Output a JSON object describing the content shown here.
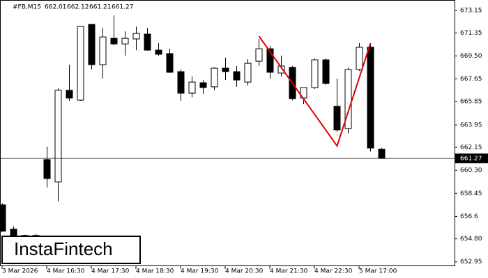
{
  "chart_data": {
    "type": "candlestick",
    "symbol": "#FB,M15",
    "header_ohlc": [
      662.01,
      662.12,
      661.21,
      661.27
    ],
    "watermark": "InstaFintech",
    "categories": [
      "3 Mar 2026",
      null,
      null,
      null,
      "4 Mar 16:30",
      null,
      null,
      null,
      "4 Mar 17:30",
      null,
      null,
      null,
      "4 Mar 18:30",
      null,
      null,
      null,
      "4 Mar 19:30",
      null,
      null,
      null,
      "4 Mar 20:30",
      null,
      null,
      null,
      "4 Mar 21:30",
      null,
      null,
      null,
      "4 Mar 22:30",
      null,
      null,
      null,
      "5 Mar 17:00",
      null,
      null
    ],
    "open": [
      657.53,
      655.58,
      655.02,
      655.07,
      661.16,
      659.37,
      666.74,
      665.95,
      672.04,
      668.8,
      670.92,
      670.47,
      670.87,
      671.26,
      669.97,
      669.69,
      668.24,
      666.51,
      667.35,
      667.02,
      668.52,
      668.24,
      667.4,
      669.08,
      670.08,
      668.13,
      668.58,
      666.12,
      666.96,
      669.19,
      665.45,
      663.67,
      668.41,
      670.2,
      662.01
    ],
    "high": [
      657.64,
      655.8,
      655.13,
      655.19,
      662.22,
      666.9,
      668.8,
      671.87,
      672.04,
      671.76,
      672.76,
      671.48,
      671.87,
      671.76,
      670.53,
      670.08,
      668.41,
      667.85,
      667.57,
      668.58,
      669.36,
      668.69,
      669.25,
      670.87,
      670.31,
      669.53,
      668.69,
      666.9,
      669.3,
      669.3,
      667.68,
      668.58,
      670.53,
      670.53,
      662.12
    ],
    "low": [
      655.41,
      654.74,
      654.91,
      654.91,
      658.92,
      657.81,
      665.9,
      665.9,
      668.41,
      667.68,
      670.36,
      669.53,
      669.97,
      669.92,
      669.53,
      668.13,
      665.9,
      666.18,
      666.46,
      666.74,
      667.57,
      667.02,
      667.13,
      668.69,
      667.68,
      667.85,
      665.95,
      665.62,
      666.85,
      667.18,
      663.39,
      663.28,
      668.3,
      661.82,
      661.21
    ],
    "close": [
      655.41,
      655.02,
      655.07,
      655.02,
      659.65,
      666.74,
      666.12,
      671.87,
      668.8,
      671.03,
      670.47,
      670.92,
      671.31,
      669.97,
      669.64,
      668.19,
      666.51,
      667.4,
      666.96,
      668.52,
      668.24,
      667.57,
      668.91,
      670.08,
      668.19,
      668.69,
      666.07,
      666.96,
      669.19,
      667.29,
      663.56,
      668.41,
      670.2,
      662.1,
      661.27
    ],
    "last_price": 661.27,
    "pattern": {
      "color": "#e00000",
      "indices": [
        23,
        30,
        33
      ],
      "values": [
        671.09,
        662.27,
        670.53
      ]
    },
    "ylim": [
      652.6,
      674.0
    ],
    "yticks": [
      673.15,
      671.35,
      {
        "value": 669.5,
        "label": "669.50"
      },
      667.65,
      665.85,
      663.95,
      662.15,
      {
        "value": 660.3,
        "label": "660.30"
      },
      658.45,
      656.6,
      {
        "value": 654.8,
        "label": "654.80"
      },
      652.95
    ]
  }
}
